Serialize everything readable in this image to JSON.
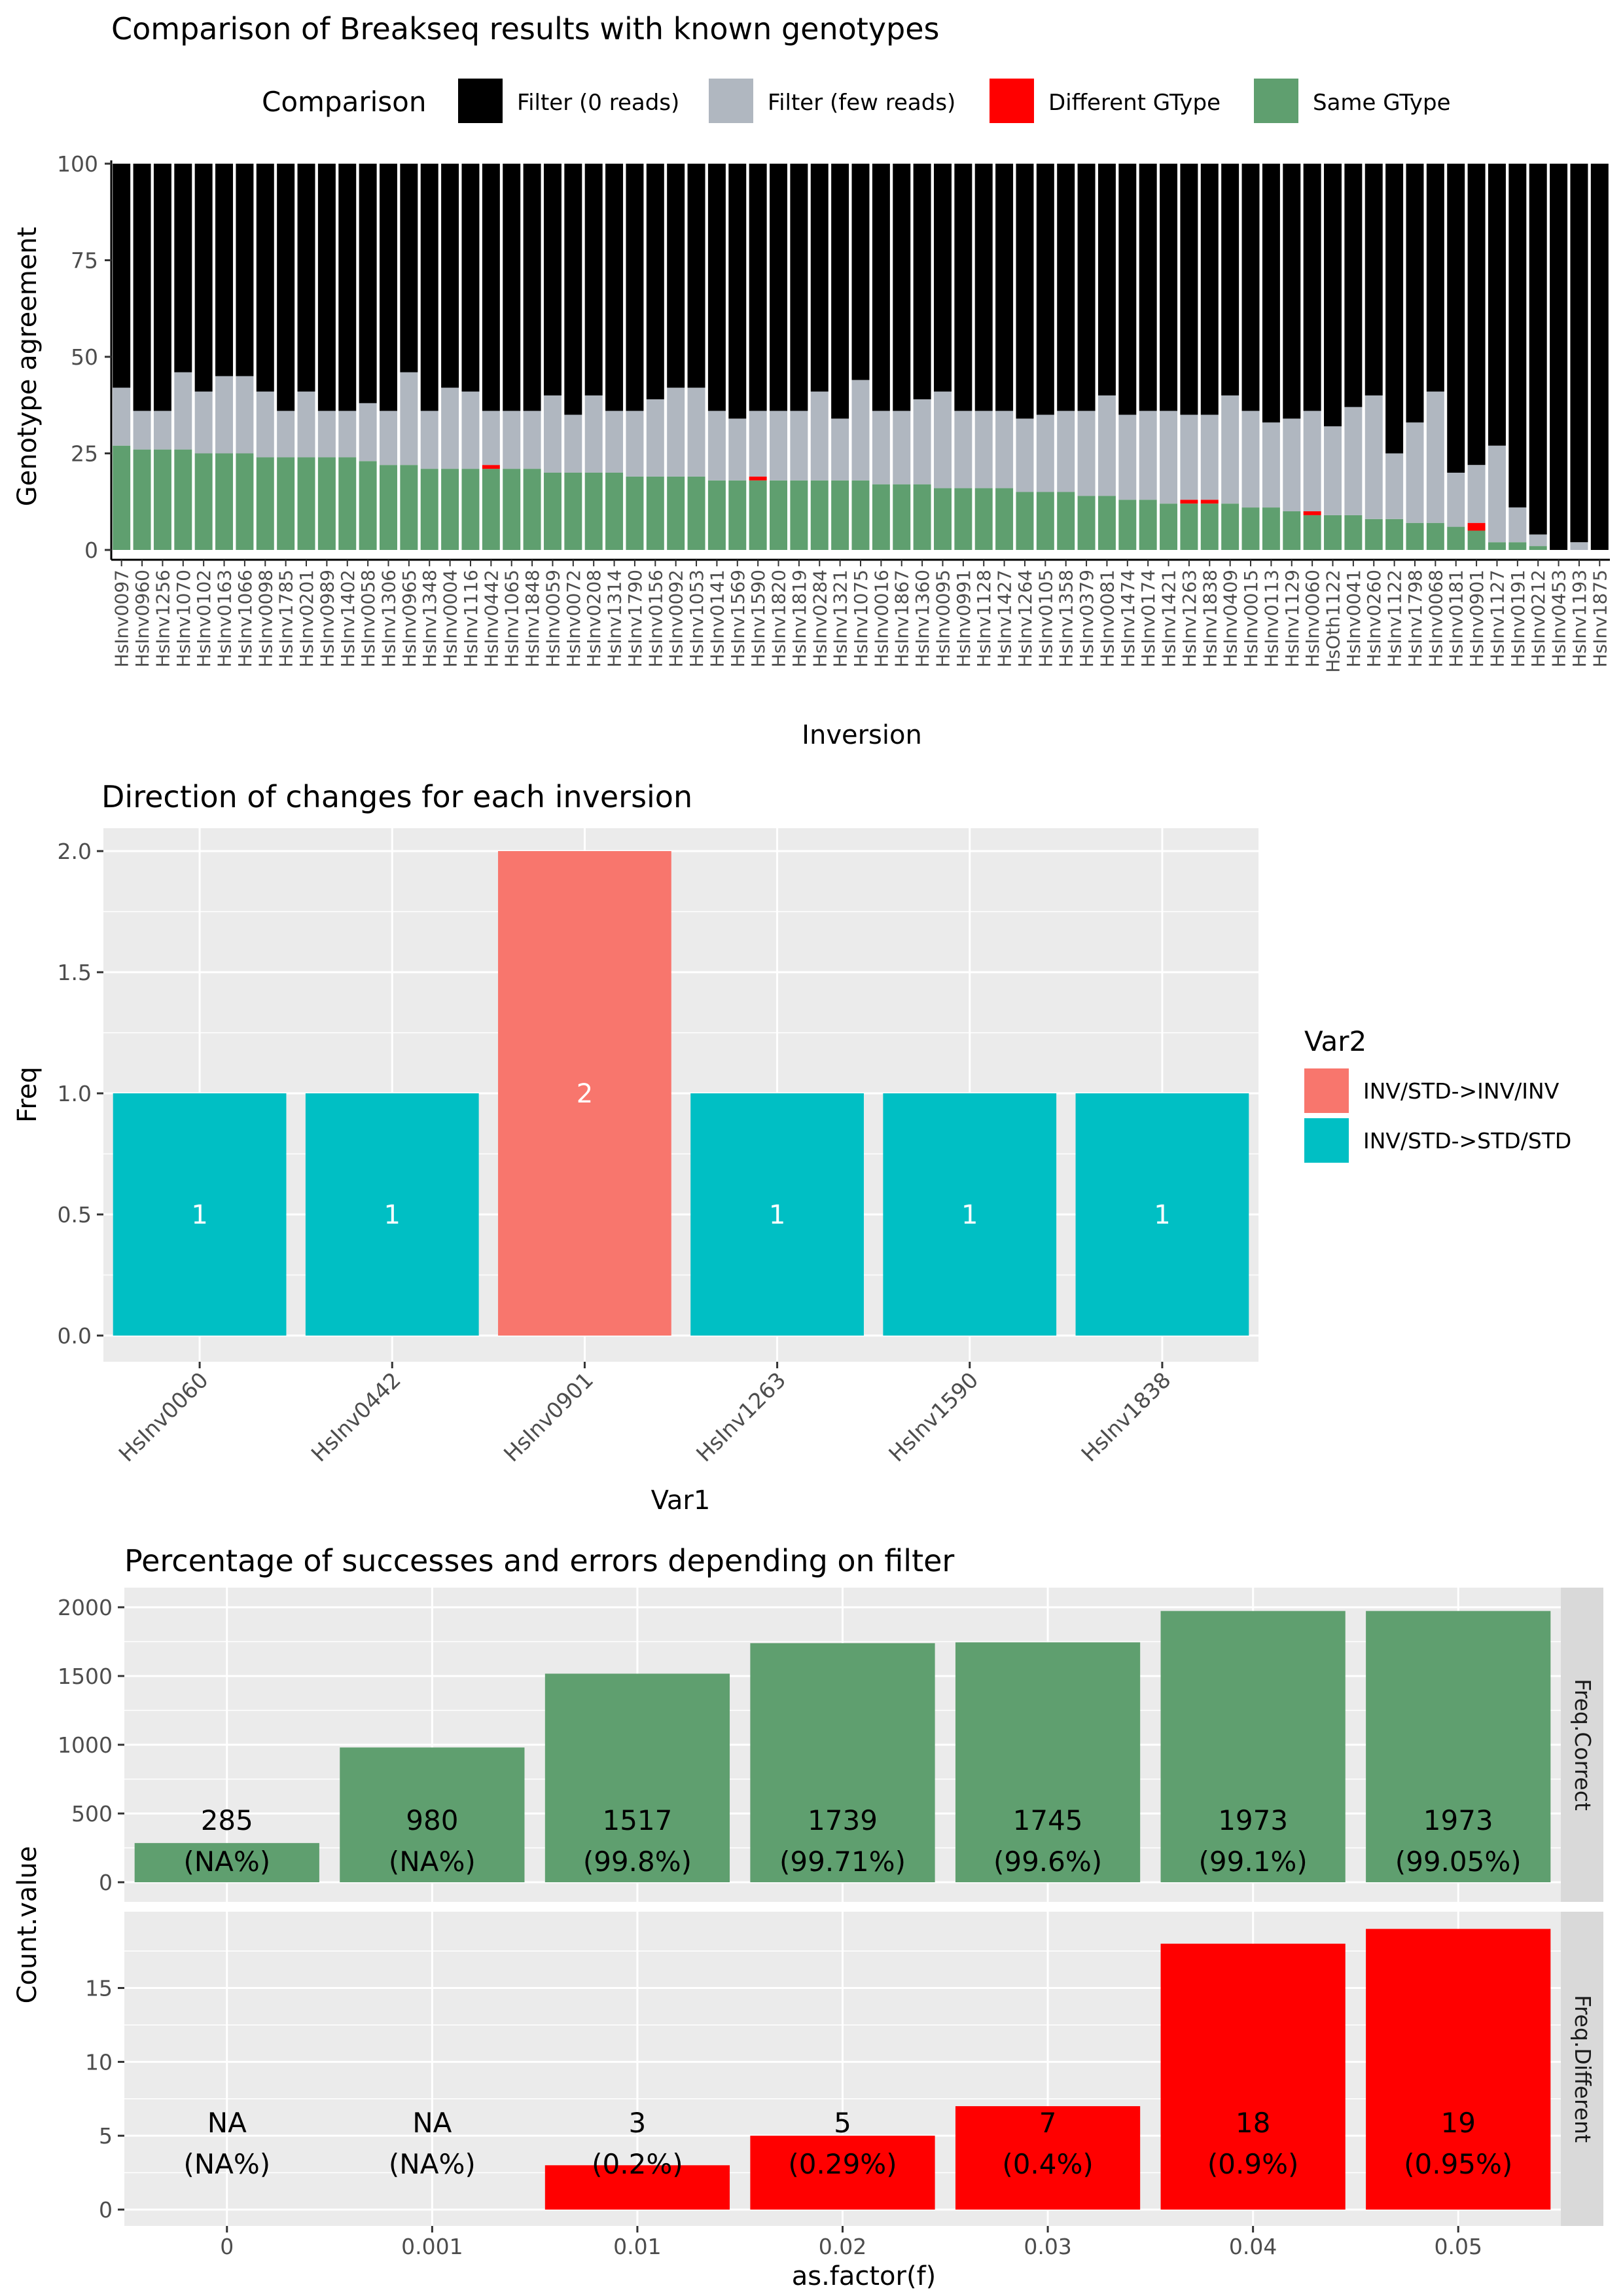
{
  "chart_data": [
    {
      "type": "bar",
      "stacked": true,
      "title": "Comparison of Breakseq results with known genotypes",
      "xlabel": "Inversion",
      "ylabel": "Genotype agreement",
      "ylim": [
        0,
        100
      ],
      "yticks": [
        "0",
        "25",
        "50",
        "75",
        "100"
      ],
      "legend": {
        "title": "Comparison",
        "position": "top",
        "entries": [
          {
            "label": "Filter (0 reads)",
            "color": "#000000"
          },
          {
            "label": "Filter (few reads)",
            "color": "#b0b7c0"
          },
          {
            "label": "Different GType",
            "color": "#ff0000"
          },
          {
            "label": "Same GType",
            "color": "#5f9f6f"
          }
        ]
      },
      "categories": [
        "HsInv0097",
        "HsInv0960",
        "HsInv1256",
        "HsInv1070",
        "HsInv0102",
        "HsInv0163",
        "HsInv1066",
        "HsInv0098",
        "HsInv1785",
        "HsInv0201",
        "HsInv0989",
        "HsInv1402",
        "HsInv0058",
        "HsInv1306",
        "HsInv0965",
        "HsInv1348",
        "HsInv0004",
        "HsInv1116",
        "HsInv0442",
        "HsInv1065",
        "HsInv1848",
        "HsInv0059",
        "HsInv0072",
        "HsInv0208",
        "HsInv1314",
        "HsInv1790",
        "HsInv0156",
        "HsInv0092",
        "HsInv1053",
        "HsInv0141",
        "HsInv1569",
        "HsInv1590",
        "HsInv1820",
        "HsInv1819",
        "HsInv0284",
        "HsInv1321",
        "HsInv1075",
        "HsInv0016",
        "HsInv1867",
        "HsInv1360",
        "HsInv0095",
        "HsInv0991",
        "HsInv1128",
        "HsInv1427",
        "HsInv1264",
        "HsInv0105",
        "HsInv1358",
        "HsInv0379",
        "HsInv0081",
        "HsInv1474",
        "HsInv0174",
        "HsInv1421",
        "HsInv1263",
        "HsInv1838",
        "HsInv0409",
        "HsInv0015",
        "HsInv0113",
        "HsInv1129",
        "HsInv0060",
        "HsOth1122",
        "HsInv0041",
        "HsInv0260",
        "HsInv1122",
        "HsInv1798",
        "HsInv0068",
        "HsInv0181",
        "HsInv0901",
        "HsInv1127",
        "HsInv0191",
        "HsInv0212",
        "HsInv0453",
        "HsInv1193",
        "HsInv1875"
      ],
      "series": [
        {
          "name": "Same GType",
          "values": [
            27,
            26,
            26,
            26,
            25,
            25,
            25,
            24,
            24,
            24,
            24,
            24,
            23,
            22,
            22,
            21,
            21,
            21,
            21,
            21,
            21,
            20,
            20,
            20,
            20,
            19,
            19,
            19,
            19,
            18,
            18,
            18,
            18,
            18,
            18,
            18,
            18,
            17,
            17,
            17,
            16,
            16,
            16,
            16,
            15,
            15,
            15,
            14,
            14,
            13,
            13,
            12,
            12,
            12,
            12,
            11,
            11,
            10,
            9,
            9,
            9,
            8,
            8,
            7,
            7,
            6,
            5,
            2,
            2,
            1,
            0,
            0,
            0
          ]
        },
        {
          "name": "Different GType",
          "values": [
            0,
            0,
            0,
            0,
            0,
            0,
            0,
            0,
            0,
            0,
            0,
            0,
            0,
            0,
            0,
            0,
            0,
            0,
            1,
            0,
            0,
            0,
            0,
            0,
            0,
            0,
            0,
            0,
            0,
            0,
            0,
            1,
            0,
            0,
            0,
            0,
            0,
            0,
            0,
            0,
            0,
            0,
            0,
            0,
            0,
            0,
            0,
            0,
            0,
            0,
            0,
            0,
            1,
            1,
            0,
            0,
            0,
            0,
            1,
            0,
            0,
            0,
            0,
            0,
            0,
            0,
            2,
            0,
            0,
            0,
            0,
            0,
            0
          ]
        },
        {
          "name": "Filter (few reads)",
          "values": [
            15,
            10,
            10,
            20,
            16,
            20,
            20,
            17,
            12,
            17,
            12,
            12,
            15,
            14,
            24,
            15,
            21,
            20,
            14,
            15,
            15,
            20,
            15,
            20,
            16,
            17,
            20,
            23,
            23,
            18,
            16,
            17,
            18,
            18,
            23,
            16,
            26,
            19,
            19,
            22,
            25,
            20,
            20,
            20,
            19,
            20,
            21,
            22,
            26,
            22,
            23,
            24,
            22,
            22,
            28,
            25,
            22,
            24,
            26,
            23,
            28,
            32,
            17,
            26,
            34,
            14,
            15,
            25,
            9,
            3,
            0,
            2,
            0
          ]
        },
        {
          "name": "Filter (0 reads)",
          "values": [
            58,
            64,
            64,
            54,
            59,
            55,
            55,
            59,
            64,
            59,
            64,
            64,
            62,
            64,
            54,
            64,
            58,
            59,
            64,
            64,
            64,
            60,
            65,
            60,
            64,
            64,
            61,
            58,
            58,
            64,
            66,
            64,
            64,
            64,
            59,
            66,
            56,
            64,
            64,
            61,
            59,
            64,
            64,
            64,
            66,
            65,
            64,
            64,
            60,
            65,
            64,
            64,
            65,
            65,
            60,
            64,
            67,
            66,
            64,
            68,
            63,
            60,
            75,
            67,
            59,
            80,
            78,
            73,
            89,
            96,
            100,
            98,
            100
          ]
        }
      ]
    },
    {
      "type": "bar",
      "title": "Direction of changes for each inversion",
      "xlabel": "Var1",
      "ylabel": "Freq",
      "ylim": [
        0,
        2
      ],
      "yticks": [
        "0.0",
        "0.5",
        "1.0",
        "1.5",
        "2.0"
      ],
      "categories": [
        "HsInv0060",
        "HsInv0442",
        "HsInv0901",
        "HsInv1263",
        "HsInv1590",
        "HsInv1838"
      ],
      "values": [
        1,
        1,
        2,
        1,
        1,
        1
      ],
      "labels": [
        "1",
        "1",
        "2",
        "1",
        "1",
        "1"
      ],
      "groups": [
        "INV/STD->STD/STD",
        "INV/STD->STD/STD",
        "INV/STD->INV/INV",
        "INV/STD->STD/STD",
        "INV/STD->STD/STD",
        "INV/STD->STD/STD"
      ],
      "legend": {
        "title": "Var2",
        "position": "right",
        "entries": [
          {
            "label": "INV/STD->INV/INV",
            "color": "#f8766d"
          },
          {
            "label": "INV/STD->STD/STD",
            "color": "#00bfc4"
          }
        ]
      }
    },
    {
      "type": "bar",
      "title": "Percentage of successes and errors depending on filter",
      "xlabel": "as.factor(f)",
      "ylabel": "Count.value",
      "categories": [
        "0",
        "0.001",
        "0.01",
        "0.02",
        "0.03",
        "0.04",
        "0.05"
      ],
      "facets": [
        {
          "strip": "Freq.Correct",
          "color": "#5f9f6f",
          "ylim": [
            0,
            2000
          ],
          "yticks": [
            "0",
            "500",
            "1000",
            "1500",
            "2000"
          ],
          "values": [
            285,
            980,
            1517,
            1739,
            1745,
            1973,
            1973
          ],
          "labels": [
            "285",
            "980",
            "1517",
            "1739",
            "1745",
            "1973",
            "1973"
          ],
          "pct": [
            "(NA%)",
            "(NA%)",
            "(99.8%)",
            "(99.71%)",
            "(99.6%)",
            "(99.1%)",
            "(99.05%)"
          ]
        },
        {
          "strip": "Freq.Different",
          "color": "#ff0000",
          "ylim": [
            0,
            19.5
          ],
          "yticks": [
            "0",
            "5",
            "10",
            "15"
          ],
          "values": [
            null,
            null,
            3,
            5,
            7,
            18,
            19
          ],
          "labels": [
            "NA",
            "NA",
            "3",
            "5",
            "7",
            "18",
            "19"
          ],
          "pct": [
            "(NA%)",
            "(NA%)",
            "(0.2%)",
            "(0.29%)",
            "(0.4%)",
            "(0.9%)",
            "(0.95%)"
          ]
        }
      ]
    }
  ]
}
